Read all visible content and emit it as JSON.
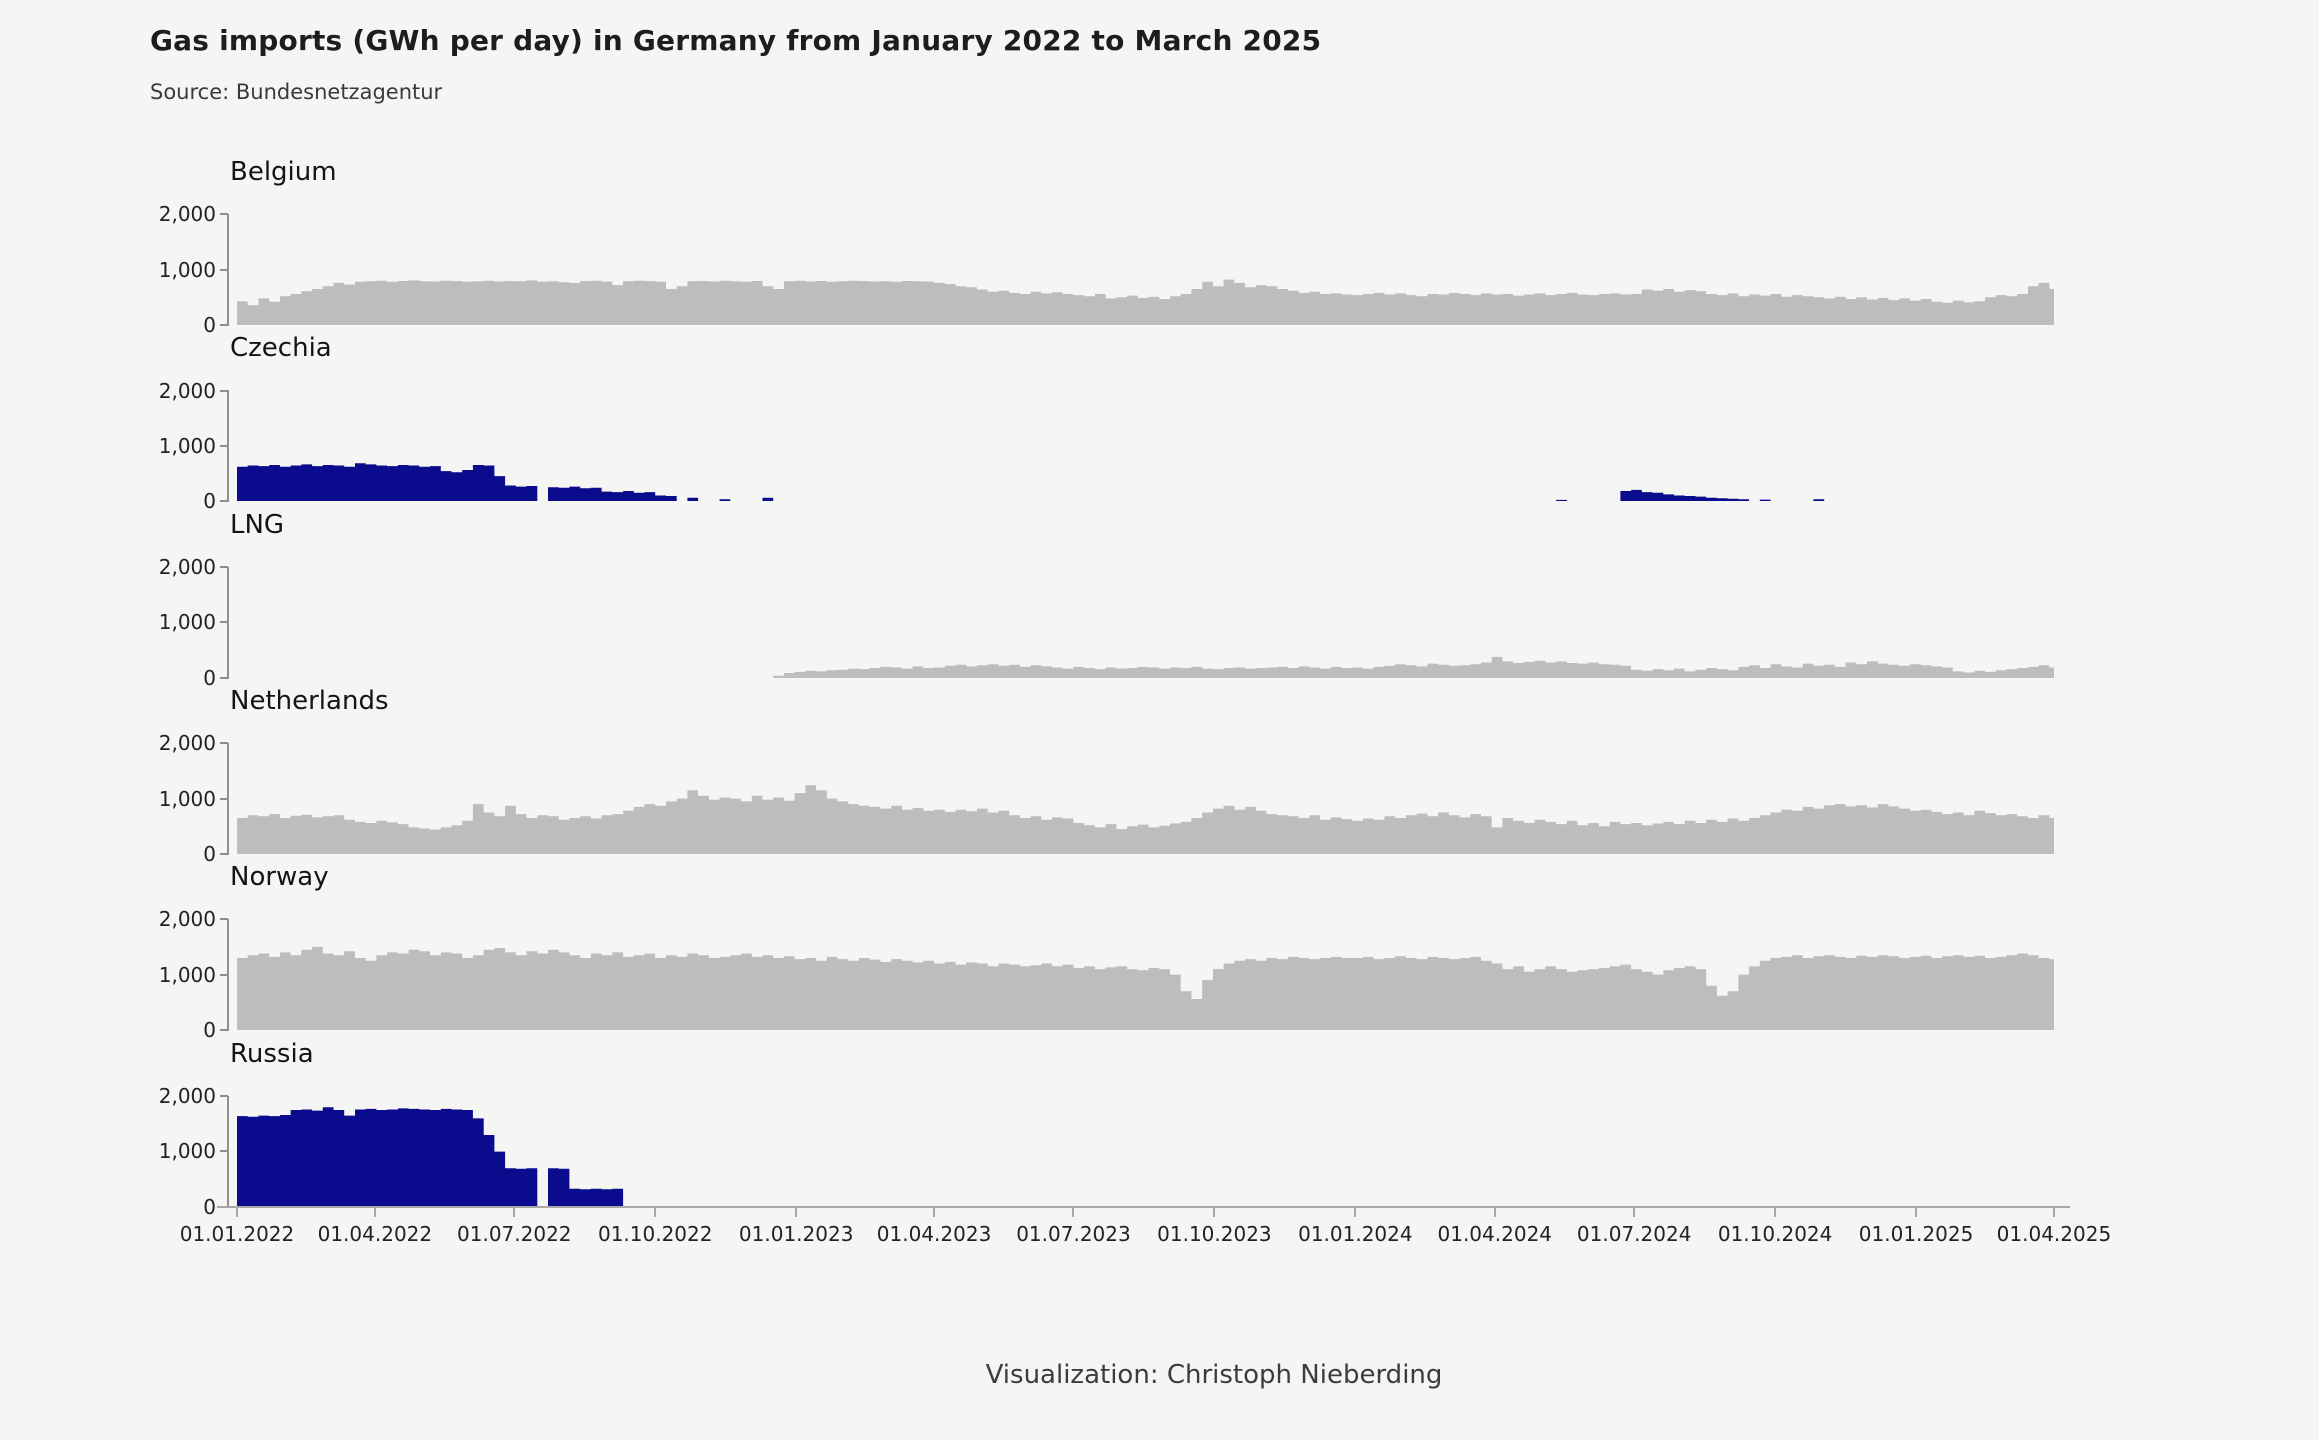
{
  "header": {
    "title": "Gas imports (GWh per day) in Germany from January 2022 to March 2025",
    "source": "Source: Bundesnetzagentur"
  },
  "footer": {
    "credit": "Visualization: Christoph Nieberding"
  },
  "chart_data": {
    "type": "area",
    "title": "Gas imports (GWh per day) in Germany from January 2022 to March 2025",
    "unit": "GWh per day",
    "layout": "small-multiples, 6 stacked panels, shared x axis",
    "ylim": [
      0,
      2000
    ],
    "y_ticks": [
      {
        "label": "2,000",
        "value": 2000
      },
      {
        "label": "1,000",
        "value": 1000
      },
      {
        "label": "0",
        "value": 0
      }
    ],
    "x_start": "01.01.2022",
    "x_end": "01.04.2025",
    "step_days": 7,
    "x_ticks": [
      {
        "label": "01.01.2022",
        "day": 0
      },
      {
        "label": "01.04.2022",
        "day": 90
      },
      {
        "label": "01.07.2022",
        "day": 181
      },
      {
        "label": "01.10.2022",
        "day": 273
      },
      {
        "label": "01.01.2023",
        "day": 365
      },
      {
        "label": "01.04.2023",
        "day": 455
      },
      {
        "label": "01.07.2023",
        "day": 546
      },
      {
        "label": "01.10.2023",
        "day": 638
      },
      {
        "label": "01.01.2024",
        "day": 730
      },
      {
        "label": "01.04.2024",
        "day": 821
      },
      {
        "label": "01.07.2024",
        "day": 912
      },
      {
        "label": "01.10.2024",
        "day": 1004
      },
      {
        "label": "01.01.2025",
        "day": 1096
      },
      {
        "label": "01.04.2025",
        "day": 1186
      }
    ],
    "colors": {
      "default": "#bdbdbd",
      "highlight": "#0b0b8e",
      "background": "#f5f5f4"
    },
    "series": [
      {
        "name": "Belgium",
        "color": "#bdbdbd",
        "values": [
          430,
          360,
          480,
          420,
          520,
          560,
          610,
          650,
          700,
          760,
          730,
          780,
          790,
          800,
          780,
          795,
          805,
          790,
          785,
          800,
          795,
          780,
          790,
          800,
          785,
          795,
          790,
          805,
          780,
          790,
          770,
          760,
          795,
          800,
          785,
          720,
          790,
          800,
          795,
          780,
          650,
          700,
          790,
          795,
          785,
          800,
          790,
          780,
          795,
          700,
          650,
          790,
          800,
          785,
          795,
          780,
          790,
          800,
          795,
          785,
          790,
          780,
          795,
          790,
          785,
          760,
          740,
          700,
          680,
          640,
          600,
          620,
          580,
          560,
          600,
          570,
          590,
          560,
          540,
          520,
          560,
          480,
          500,
          530,
          490,
          510,
          470,
          520,
          560,
          650,
          780,
          700,
          820,
          760,
          680,
          720,
          700,
          650,
          620,
          580,
          600,
          560,
          570,
          550,
          540,
          560,
          580,
          550,
          570,
          540,
          520,
          560,
          550,
          580,
          560,
          540,
          570,
          550,
          560,
          530,
          550,
          570,
          540,
          560,
          580,
          550,
          540,
          560,
          570,
          550,
          560,
          640,
          620,
          650,
          600,
          630,
          610,
          560,
          540,
          570,
          520,
          550,
          530,
          560,
          510,
          540,
          520,
          500,
          480,
          510,
          470,
          500,
          460,
          490,
          450,
          480,
          440,
          470,
          420,
          400,
          440,
          410,
          430,
          500,
          540,
          520,
          560,
          700,
          760,
          650
        ]
      },
      {
        "name": "Czechia",
        "color": "#0b0b8e",
        "values": [
          620,
          640,
          630,
          650,
          620,
          640,
          660,
          630,
          650,
          640,
          620,
          680,
          660,
          640,
          630,
          650,
          640,
          620,
          630,
          540,
          520,
          560,
          650,
          640,
          450,
          280,
          260,
          270,
          0,
          250,
          240,
          260,
          230,
          240,
          170,
          160,
          180,
          150,
          160,
          100,
          90,
          0,
          60,
          0,
          0,
          30,
          0,
          0,
          0,
          60,
          0,
          0,
          0,
          0,
          0,
          0,
          0,
          0,
          0,
          0,
          0,
          0,
          0,
          0,
          0,
          0,
          0,
          0,
          0,
          0,
          0,
          0,
          0,
          0,
          0,
          0,
          0,
          0,
          0,
          0,
          0,
          0,
          0,
          0,
          0,
          0,
          0,
          0,
          0,
          0,
          0,
          0,
          0,
          0,
          0,
          0,
          0,
          0,
          0,
          0,
          0,
          0,
          0,
          0,
          0,
          0,
          0,
          0,
          0,
          0,
          0,
          0,
          0,
          0,
          0,
          0,
          0,
          0,
          0,
          0,
          0,
          0,
          0,
          20,
          0,
          0,
          0,
          0,
          0,
          180,
          200,
          160,
          150,
          120,
          100,
          90,
          80,
          60,
          50,
          40,
          30,
          0,
          25,
          0,
          0,
          0,
          0,
          30,
          0,
          0,
          0,
          0,
          0,
          0,
          0,
          0,
          0,
          0,
          0,
          0,
          0,
          0,
          0,
          0,
          0,
          0,
          0,
          0,
          0,
          0
        ]
      },
      {
        "name": "LNG",
        "color": "#bdbdbd",
        "values": [
          0,
          0,
          0,
          0,
          0,
          0,
          0,
          0,
          0,
          0,
          0,
          0,
          0,
          0,
          0,
          0,
          0,
          0,
          0,
          0,
          0,
          0,
          0,
          0,
          0,
          0,
          0,
          0,
          0,
          0,
          0,
          0,
          0,
          0,
          0,
          0,
          0,
          0,
          0,
          0,
          0,
          0,
          0,
          0,
          0,
          0,
          0,
          0,
          0,
          0,
          40,
          90,
          110,
          130,
          120,
          140,
          150,
          170,
          160,
          180,
          200,
          190,
          170,
          210,
          180,
          190,
          220,
          240,
          210,
          230,
          250,
          220,
          240,
          200,
          230,
          210,
          190,
          170,
          200,
          180,
          160,
          190,
          170,
          180,
          200,
          190,
          170,
          190,
          180,
          200,
          170,
          160,
          180,
          190,
          170,
          180,
          190,
          200,
          180,
          210,
          190,
          170,
          200,
          180,
          190,
          170,
          200,
          220,
          250,
          230,
          210,
          260,
          240,
          220,
          230,
          250,
          280,
          380,
          300,
          270,
          290,
          310,
          280,
          300,
          270,
          260,
          280,
          250,
          240,
          220,
          150,
          130,
          160,
          140,
          170,
          120,
          150,
          180,
          160,
          140,
          200,
          230,
          180,
          250,
          210,
          190,
          260,
          220,
          240,
          200,
          280,
          250,
          300,
          260,
          240,
          220,
          250,
          230,
          210,
          190,
          120,
          100,
          130,
          110,
          140,
          160,
          180,
          200,
          230,
          190
        ]
      },
      {
        "name": "Netherlands",
        "color": "#bdbdbd",
        "values": [
          650,
          700,
          680,
          720,
          650,
          690,
          710,
          660,
          680,
          700,
          620,
          580,
          560,
          600,
          570,
          540,
          480,
          460,
          440,
          480,
          520,
          600,
          900,
          750,
          680,
          870,
          720,
          650,
          700,
          680,
          620,
          650,
          680,
          640,
          700,
          720,
          780,
          850,
          900,
          870,
          950,
          1000,
          1150,
          1050,
          980,
          1020,
          1000,
          950,
          1050,
          980,
          1020,
          960,
          1100,
          1240,
          1150,
          1000,
          950,
          900,
          870,
          850,
          820,
          870,
          800,
          830,
          780,
          800,
          760,
          800,
          770,
          820,
          750,
          780,
          700,
          650,
          680,
          620,
          660,
          640,
          560,
          520,
          480,
          540,
          450,
          500,
          530,
          480,
          510,
          550,
          580,
          650,
          750,
          820,
          870,
          800,
          850,
          780,
          720,
          700,
          680,
          650,
          700,
          620,
          660,
          630,
          600,
          640,
          620,
          680,
          650,
          700,
          730,
          680,
          750,
          700,
          660,
          720,
          680,
          480,
          650,
          600,
          560,
          620,
          580,
          540,
          600,
          520,
          560,
          500,
          580,
          540,
          560,
          520,
          550,
          580,
          540,
          600,
          560,
          620,
          580,
          640,
          600,
          650,
          700,
          750,
          800,
          780,
          850,
          820,
          880,
          900,
          860,
          880,
          840,
          900,
          860,
          820,
          780,
          800,
          760,
          720,
          750,
          700,
          780,
          740,
          700,
          720,
          680,
          650,
          700,
          650
        ]
      },
      {
        "name": "Norway",
        "color": "#bdbdbd",
        "values": [
          1300,
          1350,
          1380,
          1320,
          1400,
          1350,
          1450,
          1500,
          1380,
          1350,
          1420,
          1300,
          1250,
          1350,
          1400,
          1380,
          1450,
          1420,
          1350,
          1400,
          1380,
          1300,
          1350,
          1450,
          1480,
          1400,
          1350,
          1420,
          1380,
          1450,
          1400,
          1350,
          1300,
          1380,
          1350,
          1400,
          1320,
          1350,
          1380,
          1300,
          1350,
          1320,
          1380,
          1350,
          1300,
          1320,
          1350,
          1380,
          1320,
          1350,
          1300,
          1330,
          1280,
          1300,
          1250,
          1320,
          1280,
          1250,
          1300,
          1270,
          1230,
          1280,
          1250,
          1220,
          1250,
          1200,
          1230,
          1180,
          1220,
          1200,
          1150,
          1200,
          1180,
          1150,
          1170,
          1200,
          1150,
          1180,
          1120,
          1150,
          1100,
          1130,
          1150,
          1100,
          1080,
          1120,
          1100,
          1000,
          700,
          560,
          900,
          1100,
          1200,
          1250,
          1280,
          1250,
          1300,
          1280,
          1320,
          1300,
          1280,
          1300,
          1320,
          1300,
          1300,
          1320,
          1280,
          1300,
          1330,
          1300,
          1280,
          1320,
          1300,
          1280,
          1300,
          1320,
          1250,
          1200,
          1100,
          1150,
          1050,
          1100,
          1150,
          1100,
          1050,
          1080,
          1100,
          1120,
          1150,
          1180,
          1100,
          1050,
          1000,
          1080,
          1120,
          1150,
          1100,
          800,
          620,
          700,
          1000,
          1150,
          1250,
          1300,
          1320,
          1350,
          1300,
          1330,
          1350,
          1320,
          1300,
          1340,
          1320,
          1350,
          1330,
          1300,
          1320,
          1340,
          1300,
          1330,
          1350,
          1320,
          1340,
          1300,
          1320,
          1350,
          1380,
          1350,
          1300,
          1280
        ]
      },
      {
        "name": "Russia",
        "color": "#0b0b8e",
        "values": [
          1640,
          1630,
          1650,
          1640,
          1660,
          1750,
          1760,
          1740,
          1800,
          1750,
          1650,
          1760,
          1770,
          1750,
          1760,
          1780,
          1770,
          1760,
          1750,
          1770,
          1760,
          1750,
          1600,
          1300,
          1000,
          700,
          690,
          700,
          0,
          700,
          690,
          330,
          320,
          330,
          320,
          330,
          0,
          0,
          0,
          0,
          0,
          0,
          0,
          0,
          0,
          0,
          0,
          0,
          0,
          0,
          0,
          0,
          0,
          0,
          0,
          0,
          0,
          0,
          0,
          0,
          0,
          0,
          0,
          0,
          0,
          0,
          0,
          0,
          0,
          0,
          0,
          0,
          0,
          0,
          0,
          0,
          0,
          0,
          0,
          0,
          0,
          0,
          0,
          0,
          0,
          0,
          0,
          0,
          0,
          0,
          0,
          0,
          0,
          0,
          0,
          0,
          0,
          0,
          0,
          0,
          0,
          0,
          0,
          0,
          0,
          0,
          0,
          0,
          0,
          0,
          0,
          0,
          0,
          0,
          0,
          0,
          0,
          0,
          0,
          0,
          0,
          0,
          0,
          0,
          0,
          0,
          0,
          0,
          0,
          0,
          0,
          0,
          0,
          0,
          0,
          0,
          0,
          0,
          0,
          0,
          0,
          0,
          0,
          0,
          0,
          0,
          0,
          0,
          0,
          0,
          0,
          0,
          0,
          0,
          0,
          0,
          0,
          0,
          0,
          0
        ]
      }
    ]
  }
}
